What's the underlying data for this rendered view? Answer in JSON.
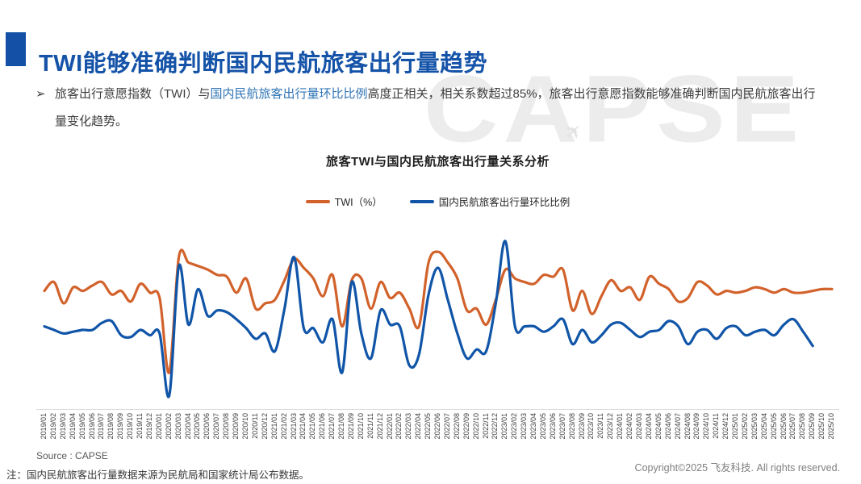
{
  "slide": {
    "title": "TWI能够准确判断国内民航旅客出行量趋势",
    "bullet": {
      "marker": "➢",
      "seg_plain_1": "旅客出行意愿指数（TWI）与",
      "seg_highlight": "国内民航旅客出行量环比比例",
      "seg_plain_2": "高度正相关，相关系数超过85%，旅客出行意愿指数能够准确判断国内民航旅客出行量变化趋势。"
    },
    "watermark": "CAPSE",
    "footer": {
      "source": "Source : CAPSE",
      "note": "注：国内民航旅客出行量数据来源为民航局和国家统计局公布数据。",
      "copyright": "Copyright©2025 飞友科技. All rights reserved."
    },
    "colors": {
      "title_blue": "#1553A8",
      "accent_square": "#1450A5",
      "highlight_text_blue": "#2E74B5"
    }
  },
  "chart_data": {
    "type": "line",
    "title": "旅客TWI与国内民航旅客出行量关系分析",
    "xlabel": "",
    "ylabel": "",
    "ylim": [
      0,
      100
    ],
    "grid": false,
    "y_axis_visible": false,
    "legend_position": "top",
    "categories": [
      "2019/01",
      "2019/02",
      "2019/03",
      "2019/04",
      "2019/05",
      "2019/06",
      "2019/07",
      "2019/08",
      "2019/09",
      "2019/10",
      "2019/11",
      "2019/12",
      "2020/01",
      "2020/02",
      "2020/03",
      "2020/04",
      "2020/05",
      "2020/06",
      "2020/07",
      "2020/08",
      "2020/09",
      "2020/10",
      "2020/11",
      "2020/12",
      "2021/01",
      "2021/02",
      "2021/03",
      "2021/04",
      "2021/05",
      "2021/06",
      "2021/07",
      "2021/08",
      "2021/09",
      "2021/10",
      "2021/11",
      "2021/12",
      "2022/01",
      "2022/02",
      "2022/03",
      "2022/04",
      "2022/05",
      "2022/06",
      "2022/07",
      "2022/08",
      "2022/09",
      "2022/10",
      "2022/11",
      "2022/12",
      "2023/01",
      "2023/02",
      "2023/03",
      "2023/04",
      "2023/05",
      "2023/06",
      "2023/07",
      "2023/08",
      "2023/09",
      "2023/10",
      "2023/11",
      "2023/12",
      "2024/01",
      "2024/02",
      "2024/03",
      "2024/04",
      "2024/05",
      "2024/06",
      "2024/07",
      "2024/08",
      "2024/09",
      "2024/10",
      "2024/11",
      "2024/12",
      "2025/01",
      "2025/02",
      "2025/03",
      "2025/04",
      "2025/05",
      "2025/06",
      "2025/07",
      "2025/08",
      "2025/09",
      "2025/10",
      "2025/10"
    ],
    "series": [
      {
        "name": "TWI（%）",
        "color": "#D2622B",
        "values": [
          67,
          72,
          60,
          69,
          67,
          70,
          72,
          65,
          67,
          61,
          71,
          66,
          63,
          21,
          86,
          83,
          81,
          79,
          76,
          75,
          66,
          74,
          57,
          60,
          62,
          73,
          85,
          80,
          74,
          64,
          76,
          47,
          73,
          74,
          57,
          72,
          63,
          66,
          57,
          47,
          83,
          89,
          83,
          74,
          56,
          57,
          48,
          62,
          79,
          74,
          72,
          71,
          76,
          75,
          79,
          56,
          67,
          54,
          64,
          73,
          67,
          69,
          62,
          75,
          71,
          68,
          61,
          63,
          72,
          70,
          65,
          67,
          66,
          67,
          69,
          68,
          66,
          68,
          66,
          66,
          67,
          68,
          68
        ]
      },
      {
        "name": "国内民航旅客出行量环比比例",
        "color": "#1155A8",
        "values": [
          47,
          45,
          43,
          44,
          45,
          45,
          49,
          50,
          42,
          41,
          45,
          42,
          43,
          8,
          81,
          48,
          68,
          53,
          56,
          55,
          51,
          46,
          40,
          43,
          33,
          57,
          86,
          46,
          46,
          38,
          51,
          21,
          72,
          43,
          29,
          56,
          48,
          47,
          25,
          31,
          65,
          80,
          62,
          43,
          29,
          34,
          33,
          60,
          95,
          47,
          47,
          47,
          44,
          47,
          51,
          37,
          45,
          38,
          42,
          48,
          49,
          45,
          41,
          44,
          45,
          50,
          47,
          37,
          44,
          45,
          40,
          46,
          47,
          42,
          44,
          45,
          42,
          48,
          51,
          44,
          36,
          null,
          null
        ]
      }
    ]
  }
}
